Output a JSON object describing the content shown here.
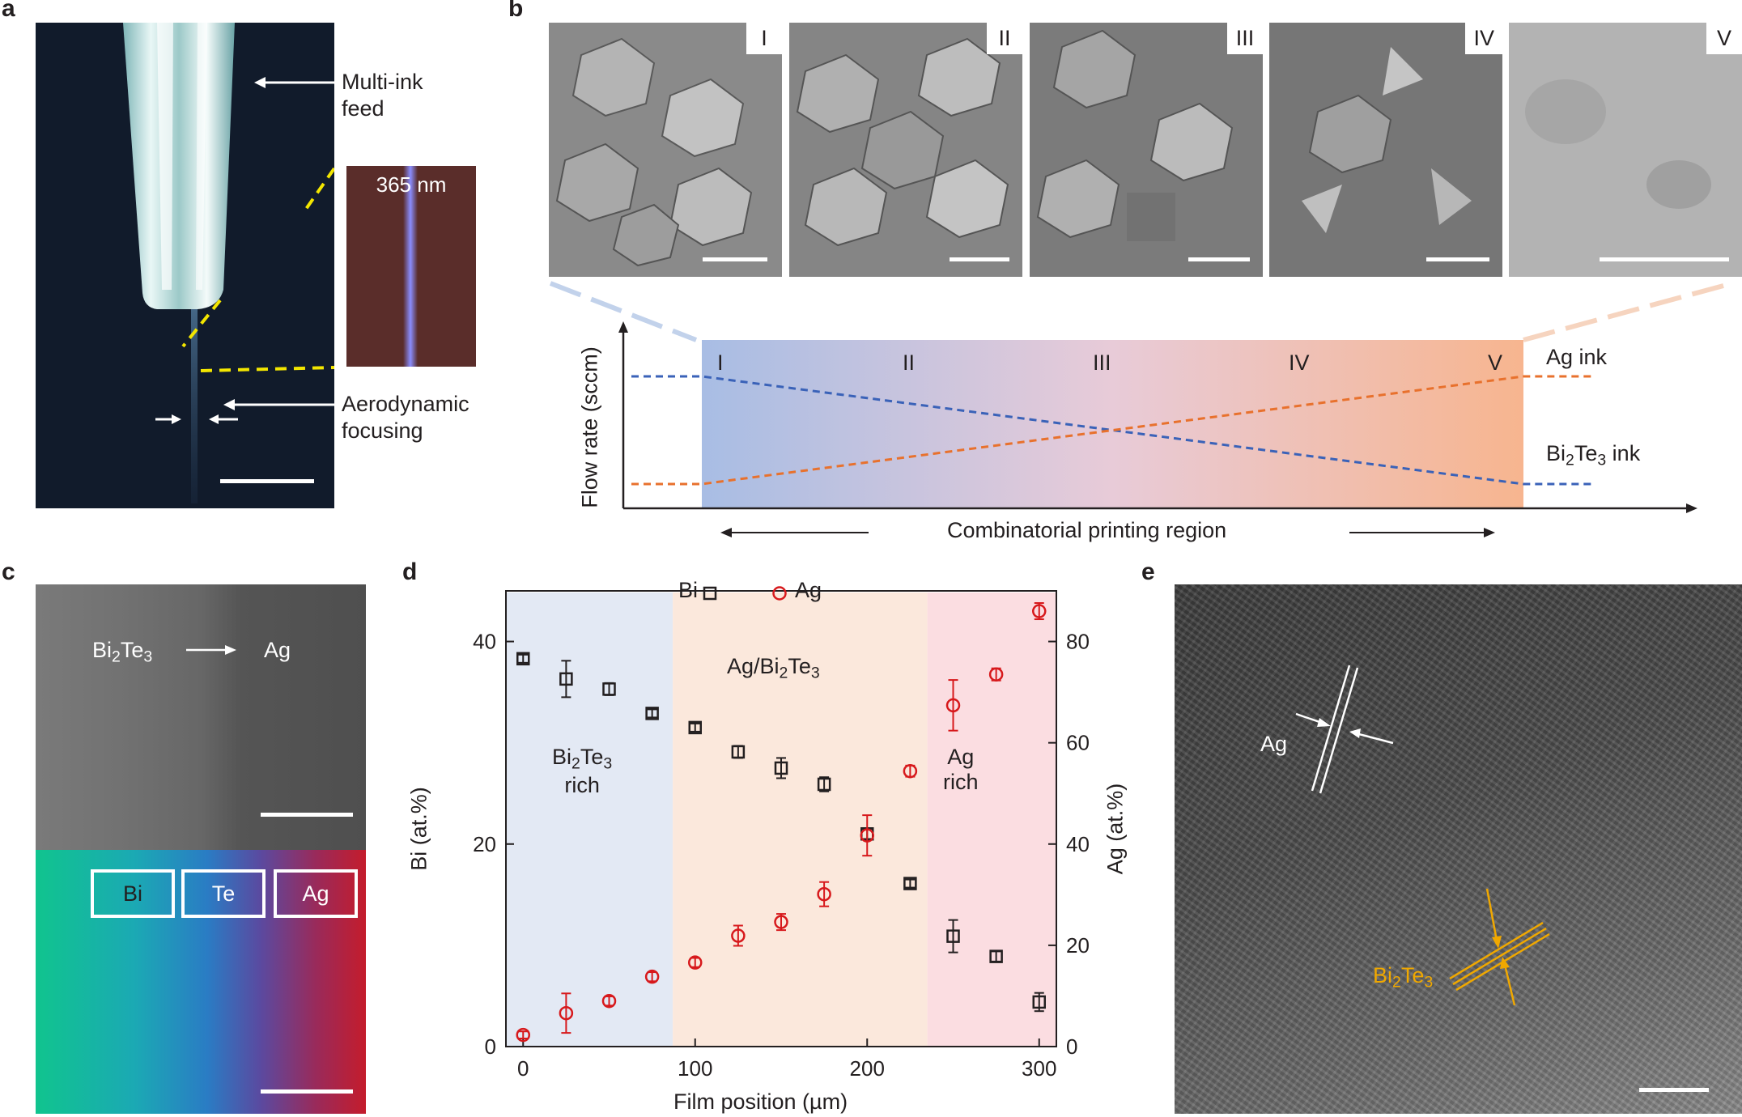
{
  "panel_labels": {
    "a": "a",
    "b": "b",
    "c": "c",
    "d": "d",
    "e": "e"
  },
  "panel_a": {
    "inset_label": "365 nm",
    "feed_label_line1": "Multi-ink",
    "feed_label_line2": "feed",
    "focus_label_line1": "Aerodynamic",
    "focus_label_line2": "focusing"
  },
  "panel_b": {
    "sem_tags": [
      "I",
      "II",
      "III",
      "IV",
      "V"
    ],
    "region_labels": [
      "I",
      "II",
      "III",
      "IV",
      "V"
    ],
    "ylabel": "Flow rate (sccm)",
    "xlabel": "Combinatorial printing region",
    "ag_ink_label": "Ag ink",
    "bite_ink_prefix": "Bi",
    "bite_ink_sub1": "2",
    "bite_ink_mid": "Te",
    "bite_ink_sub2": "3",
    "bite_ink_suffix": " ink"
  },
  "panel_c": {
    "bite_prefix": "Bi",
    "bite_sub1": "2",
    "bite_mid": "Te",
    "bite_sub2": "3",
    "arrow_target": "Ag",
    "map_legend": [
      "Bi",
      "Te",
      "Ag"
    ],
    "legend_colors": [
      "#00ee00",
      "#3b3bff",
      "#ee0000"
    ]
  },
  "panel_d": {
    "legend_bi": "Bi",
    "legend_ag": "Ag",
    "region_left_line1_prefix": "Bi",
    "region_left_line1_sub1": "2",
    "region_left_line1_mid": "Te",
    "region_left_line1_sub2": "3",
    "region_left_line2": "rich",
    "region_mid_prefix": "Ag/Bi",
    "region_mid_sub1": "2",
    "region_mid_mid": "Te",
    "region_mid_sub2": "3",
    "region_right_line1": "Ag",
    "region_right_line2": "rich",
    "xlabel": "Film position (µm)",
    "ylabel_left": "Bi (at.%)",
    "ylabel_right": "Ag (at.%)",
    "x_ticks": [
      "0",
      "100",
      "200",
      "300"
    ],
    "y_left_ticks": [
      "0",
      "20",
      "40"
    ],
    "y_right_ticks": [
      "0",
      "20",
      "40",
      "60",
      "80"
    ]
  },
  "panel_e": {
    "ag_label": "Ag",
    "bite_prefix": "Bi",
    "bite_sub1": "2",
    "bite_mid": "Te",
    "bite_sub2": "3"
  },
  "colors": {
    "bi_marker": "#231f20",
    "ag_marker": "#d7191c",
    "bi_rich_region": "#e3e9f4",
    "mixed_region": "#fbe8dc",
    "ag_rich_region": "#fbdde1",
    "flow_blue": "#3a62b8",
    "flow_orange": "#e8712d",
    "lattice_orange": "#f0a800"
  },
  "chart_data": {
    "type": "scatter",
    "x": [
      0,
      25,
      50,
      75,
      100,
      125,
      150,
      175,
      200,
      225,
      250,
      275,
      300
    ],
    "xlabel": "Film position (µm)",
    "xlim": [
      -10,
      310
    ],
    "series": [
      {
        "name": "Bi",
        "axis": "left",
        "values": [
          38.3,
          36.3,
          35.3,
          32.9,
          31.5,
          29.1,
          27.5,
          25.9,
          21.0,
          16.1,
          10.9,
          8.9,
          4.4
        ],
        "errors": [
          0.4,
          1.8,
          0.6,
          0.4,
          0.4,
          0.6,
          1.0,
          0.7,
          0.5,
          0.4,
          1.6,
          0.5,
          0.9
        ]
      },
      {
        "name": "Ag",
        "axis": "right",
        "values": [
          2.3,
          6.6,
          9.0,
          13.8,
          16.6,
          21.9,
          24.6,
          30.1,
          41.7,
          54.4,
          67.4,
          73.5,
          86.0
        ],
        "errors": [
          0.7,
          3.9,
          0.9,
          0.9,
          0.9,
          2.0,
          1.6,
          2.4,
          4.0,
          1.1,
          5.0,
          1.2,
          1.6
        ]
      }
    ],
    "ylabel_left": "Bi (at.%)",
    "ylim_left": [
      0,
      45
    ],
    "ylabel_right": "Ag (at.%)",
    "ylim_right": [
      0,
      90
    ],
    "regions": [
      {
        "label": "Bi2Te3 rich",
        "x_range": [
          -10,
          87
        ]
      },
      {
        "label": "Ag/Bi2Te3",
        "x_range": [
          87,
          235
        ]
      },
      {
        "label": "Ag rich",
        "x_range": [
          235,
          310
        ]
      }
    ],
    "legend_position": "top"
  }
}
